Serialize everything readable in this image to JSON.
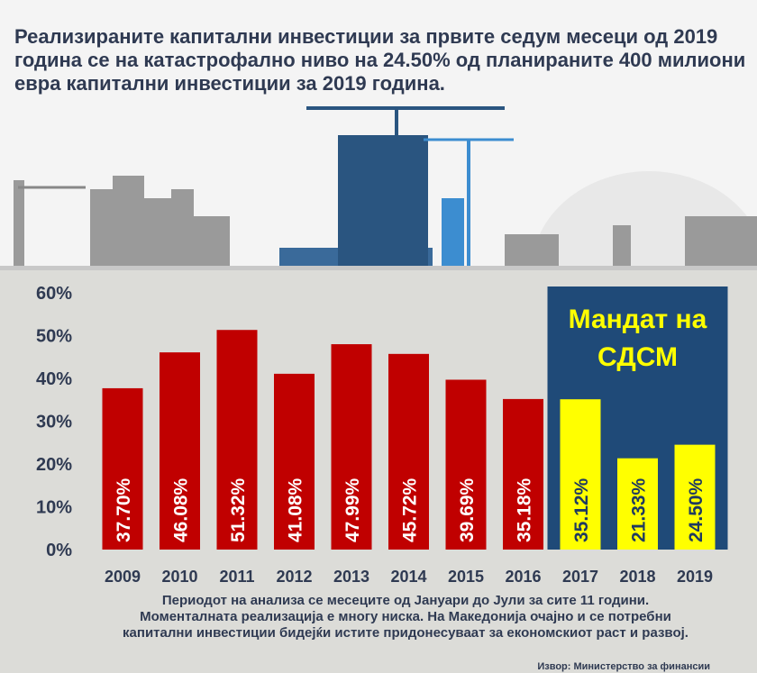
{
  "title": "Реализираните капитални инвестиции за првите седум месеци од 2019 година се на катастрофално ниво на 24.50% од планираните 400 милиони евра капитални инвестиции за 2019 година.",
  "note": [
    "Периодот на анализа се месеците од Јануари до Јули за сите 11 години.",
    "Моменталната реализација е многу ниска. На Македонија очајно и се потребни",
    "капитални инвестиции бидејќи истите придонесуваат за економскиот раст и развој."
  ],
  "source": "Извор: Министерство за финансии",
  "chart_data": {
    "type": "bar",
    "categories": [
      "2009",
      "2010",
      "2011",
      "2012",
      "2013",
      "2014",
      "2015",
      "2016",
      "2017",
      "2018",
      "2019"
    ],
    "values": [
      37.7,
      46.08,
      51.32,
      41.08,
      47.99,
      45.72,
      39.69,
      35.18,
      35.12,
      21.33,
      24.5
    ],
    "data_labels": [
      "37.70%",
      "46.08%",
      "51.32%",
      "41.08%",
      "47.99%",
      "45.72%",
      "39.69%",
      "35.18%",
      "35.12%",
      "21.33%",
      "24.50%"
    ],
    "ylim": [
      0,
      60
    ],
    "yticks": [
      "0%",
      "10%",
      "20%",
      "30%",
      "40%",
      "50%",
      "60%"
    ],
    "highlight": {
      "label": [
        "Мандат на",
        "СДСМ"
      ],
      "from": "2017",
      "to": "2019",
      "box_color": "#1f4a78",
      "label_color": "#ffff00"
    },
    "colors": {
      "default": "#c00000",
      "highlight": "#ffff00",
      "label_default": "#ffffff",
      "label_highlight": "#1f3a60"
    },
    "grid": false
  }
}
